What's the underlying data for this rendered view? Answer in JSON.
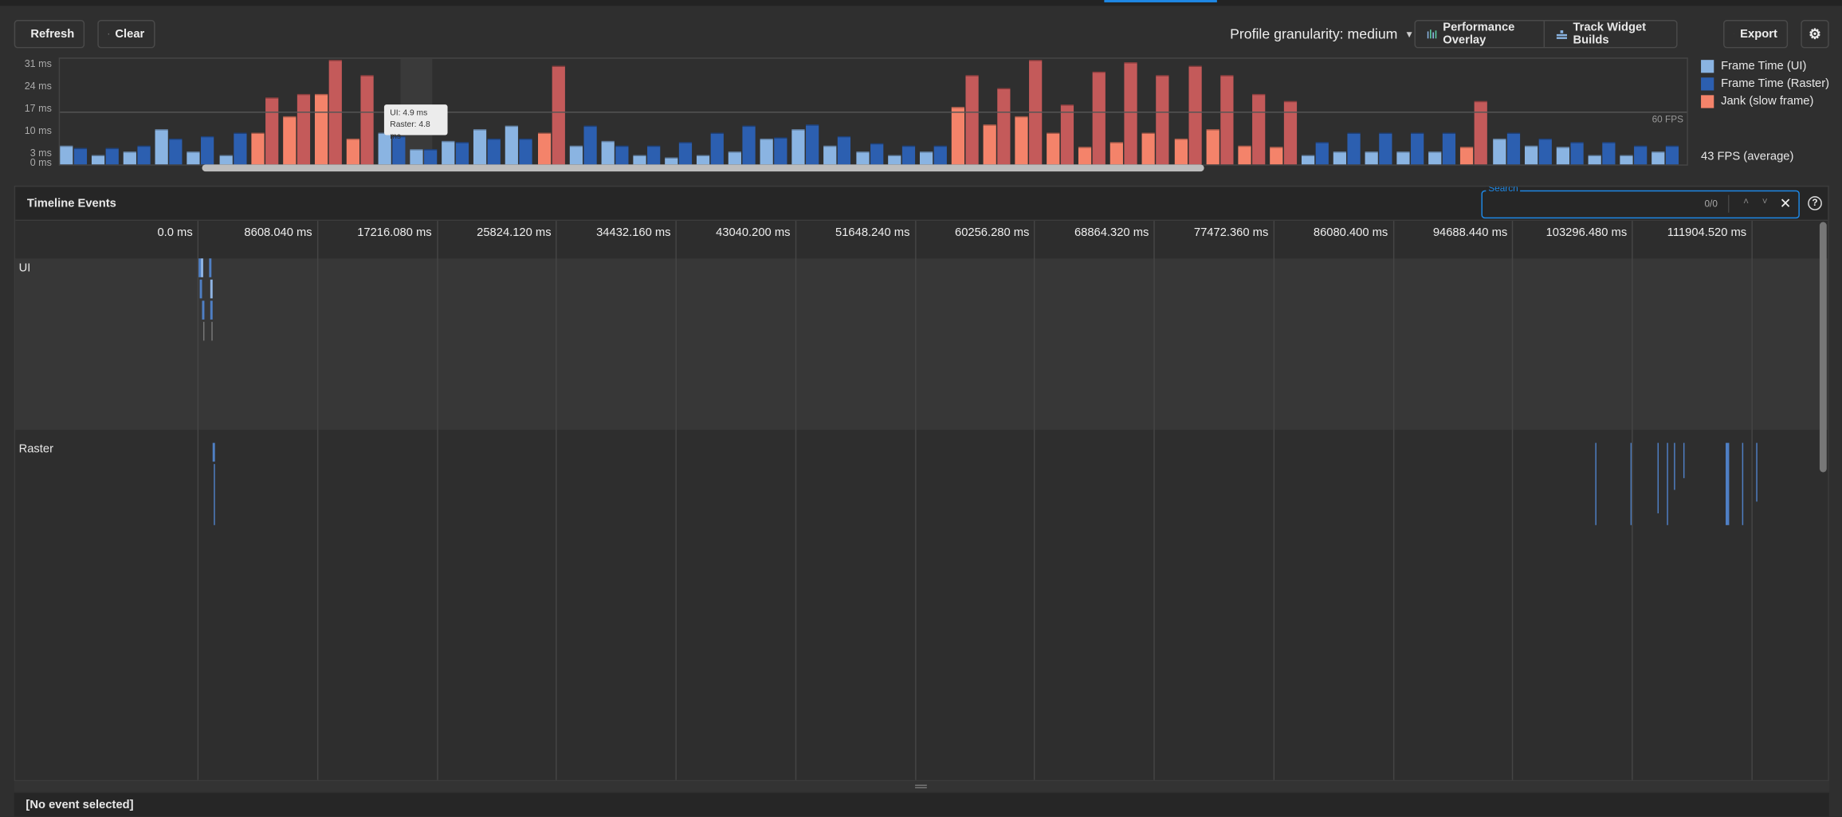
{
  "toolbar": {
    "refresh_label": "Refresh",
    "clear_label": "Clear",
    "granularity_label": "Profile granularity: medium",
    "performance_overlay_label": "Performance Overlay",
    "track_widget_builds_label": "Track Widget Builds",
    "export_label": "Export"
  },
  "chart_data": {
    "type": "bar",
    "title": "",
    "xlabel": "",
    "ylabel": "ms",
    "ylim": [
      0,
      33
    ],
    "y_ticks": [
      "31 ms",
      "24 ms",
      "17 ms",
      "10 ms",
      "3 ms",
      "0 ms"
    ],
    "y_tick_values": [
      31,
      24,
      17,
      10,
      3,
      0
    ],
    "target_line": {
      "value": 16.7,
      "label": "60 FPS"
    },
    "average_label": "43 FPS (average)",
    "legend": [
      {
        "name": "Frame Time (UI)",
        "color": "#8ab4e2"
      },
      {
        "name": "Frame Time (Raster)",
        "color": "#2c5fb0"
      },
      {
        "name": "Jank (slow frame)",
        "color": "#f4836a"
      }
    ],
    "jank_raster_color": "#c45a5a",
    "series": [
      {
        "name": "Frame Time (UI)",
        "values": [
          6,
          3,
          4,
          11,
          4,
          3,
          10,
          15,
          22,
          8,
          10,
          4.9,
          7.5,
          11,
          12,
          10,
          6,
          7.5,
          3,
          2.2,
          3,
          4,
          8,
          11,
          6,
          4,
          3,
          4,
          18,
          12.5,
          15,
          10,
          5.5,
          7,
          10,
          8,
          11,
          6,
          5.5,
          3,
          4,
          4,
          4,
          4,
          5.5,
          8,
          6,
          5.5,
          3,
          3,
          4
        ]
      },
      {
        "name": "Frame Time (Raster)",
        "values": [
          5,
          5,
          6,
          8,
          9,
          10,
          21,
          22,
          33,
          28,
          9,
          4.8,
          7,
          8,
          8,
          31,
          12,
          6,
          6,
          7,
          10,
          12,
          8.5,
          12.5,
          9,
          6.5,
          6,
          6,
          28,
          24,
          33,
          19,
          29,
          32,
          28,
          31,
          28,
          22,
          20,
          7,
          10,
          10,
          10,
          10,
          20,
          10,
          8,
          7,
          7,
          6,
          6
        ]
      },
      {
        "name": "Jank",
        "values": [
          0,
          0,
          0,
          0,
          0,
          0,
          1,
          1,
          1,
          1,
          0,
          0,
          0,
          0,
          0,
          1,
          0,
          0,
          0,
          0,
          0,
          0,
          0,
          0,
          0,
          0,
          0,
          0,
          1,
          1,
          1,
          1,
          1,
          1,
          1,
          1,
          1,
          1,
          1,
          0,
          0,
          0,
          0,
          0,
          1,
          0,
          0,
          0,
          0,
          0,
          0
        ]
      }
    ],
    "tooltip": {
      "ui": "UI: 4.9 ms",
      "raster": "Raster: 4.8 ms"
    }
  },
  "timeline": {
    "title": "Timeline Events",
    "search_label": "Search",
    "search_value": "",
    "search_count": "0/0",
    "ticks": [
      "0.0 ms",
      "8608.040 ms",
      "17216.080 ms",
      "25824.120 ms",
      "34432.160 ms",
      "43040.200 ms",
      "51648.240 ms",
      "60256.280 ms",
      "68864.320 ms",
      "77472.360 ms",
      "86080.400 ms",
      "94688.440 ms",
      "103296.480 ms",
      "111904.520 ms"
    ],
    "sections": [
      "UI",
      "Raster"
    ]
  },
  "details": {
    "text": "[No event selected]"
  }
}
